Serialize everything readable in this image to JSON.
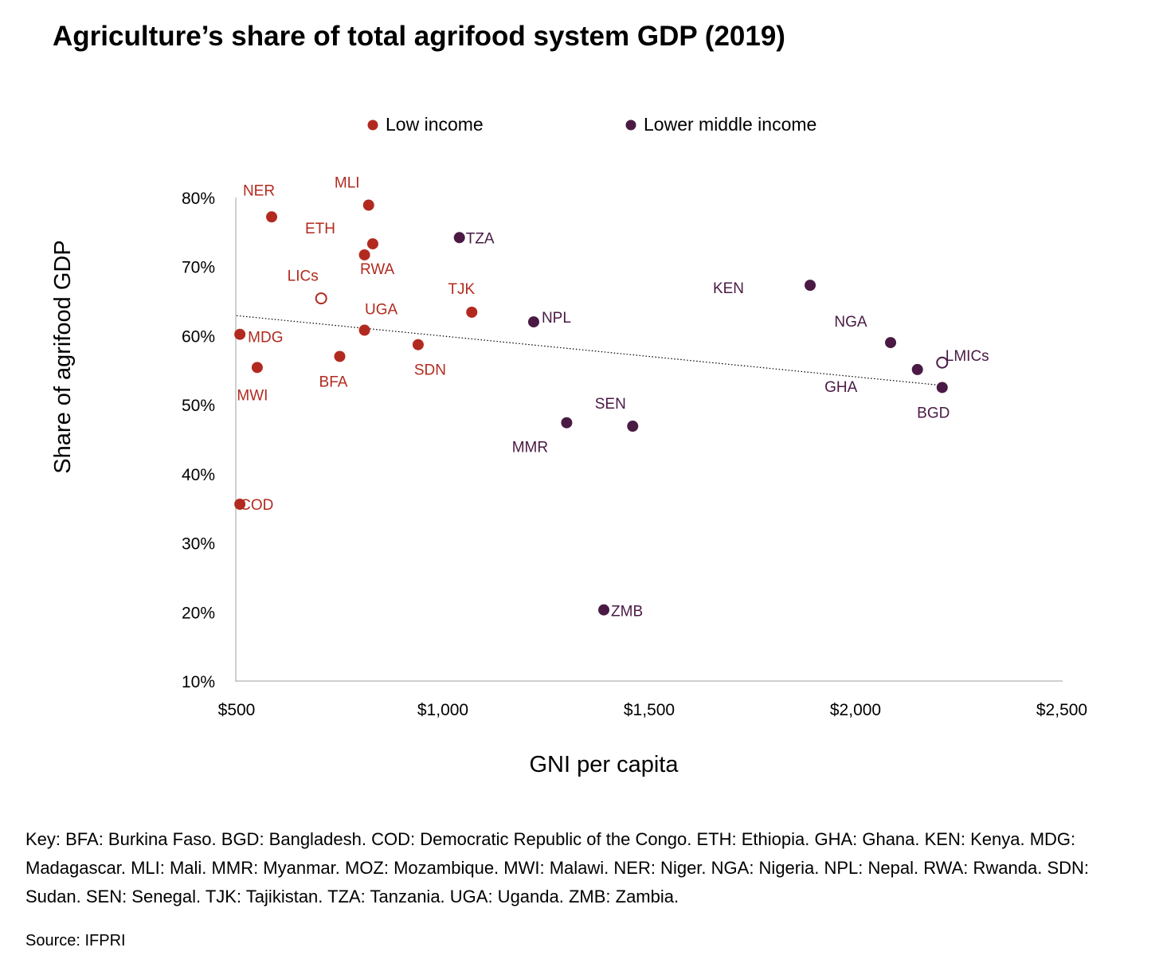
{
  "chart_data": {
    "type": "scatter",
    "title": "Agriculture’s share of total agrifood system GDP (2019)",
    "xlabel": "GNI per capita",
    "ylabel": "Share of agrifood GDP",
    "xlim": [
      500,
      2500
    ],
    "ylim": [
      10,
      80
    ],
    "x_ticks": [
      {
        "value": 500,
        "label": "$500"
      },
      {
        "value": 1000,
        "label": "$1,000"
      },
      {
        "value": 1500,
        "label": "$1,500"
      },
      {
        "value": 2000,
        "label": "$2,000"
      },
      {
        "value": 2500,
        "label": "$2,500"
      }
    ],
    "y_ticks": [
      {
        "value": 80,
        "label": "80%"
      },
      {
        "value": 70,
        "label": "70%"
      },
      {
        "value": 60,
        "label": "60%"
      },
      {
        "value": 50,
        "label": "50%"
      },
      {
        "value": 40,
        "label": "40%"
      },
      {
        "value": 30,
        "label": "30%"
      },
      {
        "value": 20,
        "label": "20%"
      },
      {
        "value": 10,
        "label": "10%"
      }
    ],
    "legend_position": "top-center",
    "grid": false,
    "trendline": {
      "style": "dotted",
      "color": "#000000",
      "x": [
        500,
        2210
      ],
      "y": [
        62.9,
        52.8
      ]
    },
    "series": [
      {
        "name": "Low income",
        "color": "#b22a1f",
        "points": [
          {
            "label": "NER",
            "x": 585,
            "y": 77.2
          },
          {
            "label": "MLI",
            "x": 820,
            "y": 78.9
          },
          {
            "label": "ETH",
            "x": 830,
            "y": 73.3
          },
          {
            "label": "RWA",
            "x": 810,
            "y": 71.7
          },
          {
            "label": "LICs",
            "x": 705,
            "y": 65.4,
            "hollow": true
          },
          {
            "label": "TJK",
            "x": 1070,
            "y": 63.4
          },
          {
            "label": "UGA",
            "x": 810,
            "y": 60.8
          },
          {
            "label": "MDG",
            "x": 508,
            "y": 60.2
          },
          {
            "label": "SDN",
            "x": 940,
            "y": 58.7
          },
          {
            "label": "BFA",
            "x": 750,
            "y": 57.0
          },
          {
            "label": "MWI",
            "x": 550,
            "y": 55.4
          },
          {
            "label": "COD",
            "x": 508,
            "y": 35.6
          }
        ]
      },
      {
        "name": "Lower middle income",
        "color": "#4a1a44",
        "points": [
          {
            "label": "TZA",
            "x": 1040,
            "y": 74.2
          },
          {
            "label": "KEN",
            "x": 1890,
            "y": 67.3
          },
          {
            "label": "NPL",
            "x": 1220,
            "y": 62.0
          },
          {
            "label": "NGA",
            "x": 2085,
            "y": 59.0
          },
          {
            "label": "LMICs",
            "x": 2210,
            "y": 56.1,
            "hollow": true
          },
          {
            "label": "GHA",
            "x": 2150,
            "y": 55.1
          },
          {
            "label": "BGD",
            "x": 2210,
            "y": 52.5
          },
          {
            "label": "MMR",
            "x": 1300,
            "y": 47.4
          },
          {
            "label": "SEN",
            "x": 1460,
            "y": 46.9
          },
          {
            "label": "ZMB",
            "x": 1390,
            "y": 20.3
          }
        ]
      }
    ]
  },
  "key_text": "Key: BFA: Burkina Faso. BGD: Bangladesh. COD: Democratic Republic of the Congo. ETH: Ethiopia. GHA: Ghana. KEN: Kenya. MDG: Madagascar. MLI: Mali. MMR: Myanmar. MOZ: Mozambique. MWI: Malawi. NER: Niger. NGA: Nigeria. NPL: Nepal. RWA: Rwanda. SDN: Sudan. SEN: Senegal. TJK: Tajikistan. TZA: Tanzania. UGA: Uganda. ZMB: Zambia.",
  "source_text": "Source: IFPRI"
}
